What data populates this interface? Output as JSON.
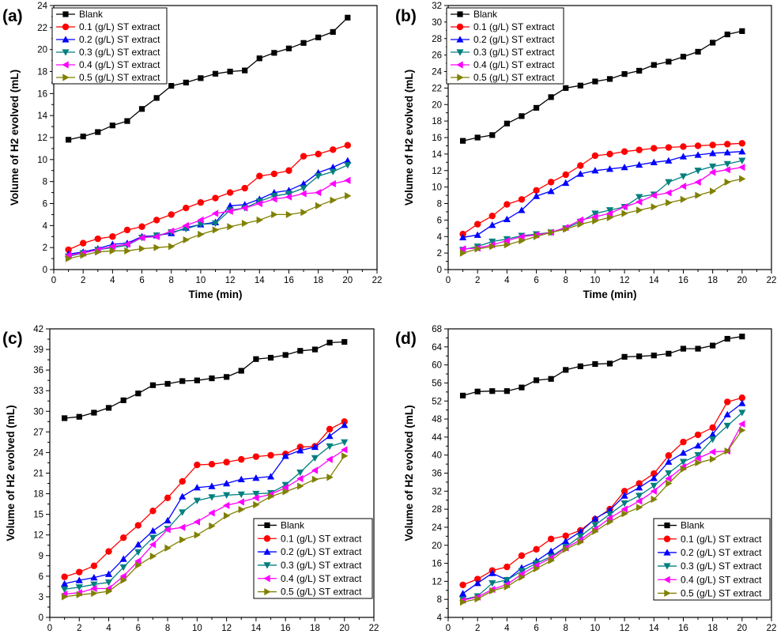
{
  "series_styles": [
    {
      "marker": "square",
      "color": "#000000"
    },
    {
      "marker": "circle",
      "color": "#ff0000"
    },
    {
      "marker": "triangle-up",
      "color": "#0000ff"
    },
    {
      "marker": "triangle-down",
      "color": "#007f7f"
    },
    {
      "marker": "triangle-left",
      "color": "#ff00ff"
    },
    {
      "marker": "triangle-right",
      "color": "#808000"
    }
  ],
  "chart_data": [
    {
      "type": "line",
      "panel_label": "(a)",
      "xlabel": "Time (min)",
      "ylabel": "Volume of H2 evolved (mL)",
      "xlim": [
        0,
        22
      ],
      "xticks": [
        0,
        2,
        4,
        6,
        8,
        10,
        12,
        14,
        16,
        18,
        20,
        22
      ],
      "ylim": [
        0,
        24
      ],
      "yticks": [
        0,
        2,
        4,
        6,
        8,
        10,
        12,
        14,
        16,
        18,
        20,
        22,
        24
      ],
      "legend_position": "top-left",
      "x": [
        1,
        2,
        3,
        4,
        5,
        6,
        7,
        8,
        9,
        10,
        11,
        12,
        13,
        14,
        15,
        16,
        17,
        18,
        19,
        20
      ],
      "series": [
        {
          "name": "Blank",
          "values": [
            11.8,
            12.1,
            12.5,
            13.1,
            13.5,
            14.6,
            15.6,
            16.7,
            17.0,
            17.4,
            17.8,
            18.0,
            18.1,
            19.2,
            19.7,
            20.1,
            20.6,
            21.1,
            21.6,
            22.9
          ]
        },
        {
          "name": "0.1 (g/L) ST extract",
          "values": [
            1.8,
            2.4,
            2.8,
            3.0,
            3.6,
            3.9,
            4.5,
            5.0,
            5.6,
            6.1,
            6.5,
            7.0,
            7.4,
            8.5,
            8.7,
            9.0,
            10.3,
            10.5,
            10.9,
            11.3
          ]
        },
        {
          "name": "0.2 (g/L) ST extract",
          "values": [
            1.4,
            1.6,
            1.9,
            2.3,
            2.4,
            3.0,
            3.1,
            3.3,
            3.8,
            4.1,
            4.3,
            5.8,
            5.9,
            6.4,
            7.0,
            7.2,
            7.8,
            8.8,
            9.3,
            9.9
          ]
        },
        {
          "name": "0.3 (g/L) ST extract",
          "values": [
            1.2,
            1.5,
            1.8,
            2.0,
            2.2,
            2.9,
            3.1,
            3.4,
            3.7,
            4.1,
            4.2,
            5.4,
            5.6,
            6.2,
            6.7,
            6.9,
            7.4,
            8.5,
            8.9,
            9.5
          ]
        },
        {
          "name": "0.4 (g/L) ST extract",
          "values": [
            1.3,
            1.5,
            1.8,
            2.1,
            2.3,
            2.9,
            3.0,
            3.5,
            4.0,
            4.5,
            5.1,
            5.3,
            5.6,
            6.0,
            6.4,
            6.6,
            6.9,
            7.0,
            7.8,
            8.1
          ]
        },
        {
          "name": "0.5 (g/L) ST extract",
          "values": [
            1.0,
            1.3,
            1.6,
            1.7,
            1.7,
            1.9,
            2.0,
            2.1,
            2.7,
            3.2,
            3.6,
            3.9,
            4.2,
            4.5,
            5.0,
            5.0,
            5.2,
            5.8,
            6.3,
            6.7
          ]
        }
      ]
    },
    {
      "type": "line",
      "panel_label": "(b)",
      "xlabel": "Time (min)",
      "ylabel": "Volume of H2 evolved (mL)",
      "xlim": [
        0,
        22
      ],
      "xticks": [
        0,
        2,
        4,
        6,
        8,
        10,
        12,
        14,
        16,
        18,
        20,
        22
      ],
      "ylim": [
        0,
        32
      ],
      "yticks": [
        0,
        2,
        4,
        6,
        8,
        10,
        12,
        14,
        16,
        18,
        20,
        22,
        24,
        26,
        28,
        30,
        32
      ],
      "legend_position": "top-left",
      "x": [
        1,
        2,
        3,
        4,
        5,
        6,
        7,
        8,
        9,
        10,
        11,
        12,
        13,
        14,
        15,
        16,
        17,
        18,
        19,
        20
      ],
      "series": [
        {
          "name": "Blank",
          "values": [
            15.6,
            16.0,
            16.3,
            17.7,
            18.6,
            19.6,
            20.9,
            22.0,
            22.3,
            22.8,
            23.1,
            23.7,
            24.1,
            24.8,
            25.2,
            25.8,
            26.4,
            27.5,
            28.5,
            28.9
          ]
        },
        {
          "name": "0.1 (g/L) ST extract",
          "values": [
            4.3,
            5.5,
            6.5,
            7.9,
            8.5,
            9.6,
            10.6,
            11.5,
            12.6,
            13.8,
            14.0,
            14.3,
            14.5,
            14.7,
            14.8,
            14.9,
            15.0,
            15.1,
            15.2,
            15.3
          ]
        },
        {
          "name": "0.2 (g/L) ST extract",
          "values": [
            3.9,
            4.2,
            5.4,
            6.1,
            7.2,
            8.9,
            9.5,
            10.5,
            11.6,
            12.0,
            12.2,
            12.4,
            12.7,
            13.0,
            13.2,
            13.7,
            13.9,
            14.1,
            14.2,
            14.3
          ]
        },
        {
          "name": "0.3 (g/L) ST extract",
          "values": [
            2.4,
            2.8,
            3.4,
            3.7,
            4.1,
            4.3,
            4.5,
            5.0,
            5.8,
            6.8,
            7.2,
            7.6,
            8.8,
            9.1,
            10.6,
            11.3,
            12.0,
            12.5,
            12.8,
            13.2
          ]
        },
        {
          "name": "0.4 (g/L) ST extract",
          "values": [
            2.5,
            2.6,
            3.0,
            3.5,
            4.0,
            4.2,
            4.5,
            5.1,
            6.0,
            6.4,
            6.8,
            7.6,
            8.2,
            9.0,
            9.3,
            10.1,
            10.6,
            11.8,
            12.1,
            12.4
          ]
        },
        {
          "name": "0.5 (g/L) ST extract",
          "values": [
            2.0,
            2.5,
            2.8,
            3.0,
            3.5,
            4.0,
            4.5,
            4.9,
            5.5,
            5.9,
            6.3,
            6.8,
            7.2,
            7.6,
            8.1,
            8.5,
            9.0,
            9.5,
            10.6,
            11.0
          ]
        }
      ]
    },
    {
      "type": "line",
      "panel_label": "(c)",
      "xlabel": "Time (min)",
      "ylabel": "Volume of H2 evolved (mL)",
      "xlim": [
        0,
        22
      ],
      "xticks": [
        0,
        2,
        4,
        6,
        8,
        10,
        12,
        14,
        16,
        18,
        20,
        22
      ],
      "ylim": [
        0,
        42
      ],
      "yticks": [
        0,
        3,
        6,
        9,
        12,
        15,
        18,
        21,
        24,
        27,
        30,
        33,
        36,
        39,
        42
      ],
      "legend_position": "bottom-right",
      "x": [
        1,
        2,
        3,
        4,
        5,
        6,
        7,
        8,
        9,
        10,
        11,
        12,
        13,
        14,
        15,
        16,
        17,
        18,
        19,
        20
      ],
      "series": [
        {
          "name": "Blank",
          "values": [
            29.0,
            29.2,
            29.8,
            30.5,
            31.6,
            32.6,
            33.8,
            34.0,
            34.4,
            34.5,
            34.8,
            35.0,
            35.9,
            37.6,
            37.8,
            38.2,
            38.8,
            39.0,
            40.0,
            40.1
          ]
        },
        {
          "name": "0.1 (g/L) ST extract",
          "values": [
            5.9,
            6.6,
            7.5,
            9.6,
            11.6,
            13.4,
            15.5,
            17.4,
            19.8,
            22.2,
            22.3,
            22.6,
            23.0,
            23.4,
            23.6,
            23.8,
            24.8,
            24.9,
            27.4,
            28.5
          ]
        },
        {
          "name": "0.2 (g/L) ST extract",
          "values": [
            4.9,
            5.4,
            5.8,
            6.3,
            8.5,
            10.6,
            12.6,
            14.1,
            17.6,
            18.9,
            19.1,
            19.5,
            20.1,
            20.3,
            20.5,
            23.5,
            24.3,
            24.8,
            26.4,
            28.0
          ]
        },
        {
          "name": "0.3 (g/L) ST extract",
          "values": [
            4.1,
            4.4,
            4.8,
            5.1,
            7.3,
            9.5,
            11.6,
            12.9,
            15.3,
            17.0,
            17.5,
            17.8,
            17.9,
            18.0,
            18.1,
            19.3,
            21.1,
            23.2,
            24.9,
            25.5
          ]
        },
        {
          "name": "0.4 (g/L) ST extract",
          "values": [
            3.4,
            3.6,
            4.2,
            4.2,
            6.0,
            8.2,
            10.6,
            12.8,
            13.1,
            13.9,
            15.2,
            16.3,
            16.8,
            17.4,
            17.9,
            18.9,
            20.2,
            21.4,
            23.0,
            24.4
          ]
        },
        {
          "name": "0.5 (g/L) ST extract",
          "values": [
            3.0,
            3.3,
            3.5,
            3.8,
            5.4,
            7.6,
            8.9,
            10.1,
            11.3,
            12.0,
            13.3,
            14.8,
            15.7,
            16.4,
            17.6,
            18.3,
            19.1,
            20.1,
            20.4,
            23.5
          ]
        }
      ]
    },
    {
      "type": "line",
      "panel_label": "(d)",
      "xlabel": "Time (min)",
      "ylabel": "Volume of H2 evolved (mL)",
      "xlim": [
        0,
        22
      ],
      "xticks": [
        0,
        2,
        4,
        6,
        8,
        10,
        12,
        14,
        16,
        18,
        20,
        22
      ],
      "ylim": [
        4,
        68
      ],
      "yticks": [
        4,
        8,
        12,
        16,
        20,
        24,
        28,
        32,
        36,
        40,
        44,
        48,
        52,
        56,
        60,
        64,
        68
      ],
      "legend_position": "bottom-right",
      "x": [
        1,
        2,
        3,
        4,
        5,
        6,
        7,
        8,
        9,
        10,
        11,
        12,
        13,
        14,
        15,
        16,
        17,
        18,
        19,
        20
      ],
      "series": [
        {
          "name": "Blank",
          "values": [
            53.2,
            54.1,
            54.2,
            54.2,
            55.0,
            56.6,
            56.9,
            58.9,
            59.7,
            60.2,
            60.3,
            61.8,
            61.9,
            62.1,
            62.5,
            63.6,
            63.6,
            64.3,
            65.8,
            66.3
          ]
        },
        {
          "name": "0.1 (g/L) ST extract",
          "values": [
            11.2,
            12.5,
            14.4,
            15.2,
            17.7,
            19.1,
            21.4,
            22.1,
            23.3,
            25.8,
            28.0,
            32.0,
            33.7,
            35.9,
            39.9,
            42.9,
            44.5,
            46.1,
            51.8,
            52.7
          ]
        },
        {
          "name": "0.2 (g/L) ST extract",
          "values": [
            9.3,
            11.6,
            13.8,
            12.3,
            15.0,
            16.5,
            18.7,
            20.9,
            23.0,
            25.9,
            27.8,
            31.0,
            32.8,
            34.9,
            38.5,
            40.5,
            42.1,
            44.6,
            49.0,
            51.5
          ]
        },
        {
          "name": "0.3 (g/L) ST extract",
          "values": [
            8.0,
            8.7,
            11.6,
            12.3,
            14.3,
            16.0,
            17.5,
            19.6,
            22.0,
            24.5,
            26.9,
            29.3,
            31.0,
            33.2,
            36.0,
            38.5,
            40.0,
            43.5,
            46.5,
            49.4
          ]
        },
        {
          "name": "0.4 (g/L) ST extract",
          "values": [
            7.8,
            8.5,
            10.2,
            11.3,
            13.6,
            15.5,
            17.2,
            19.4,
            21.2,
            23.6,
            26.0,
            28.0,
            29.8,
            32.0,
            34.8,
            37.4,
            39.3,
            40.7,
            40.9,
            46.9
          ]
        },
        {
          "name": "0.5 (g/L) ST extract",
          "values": [
            7.4,
            8.1,
            9.9,
            10.8,
            12.9,
            14.8,
            16.6,
            19.1,
            20.7,
            23.1,
            25.2,
            27.0,
            28.4,
            30.2,
            33.7,
            36.9,
            38.3,
            39.1,
            40.9,
            45.5
          ]
        }
      ]
    }
  ]
}
